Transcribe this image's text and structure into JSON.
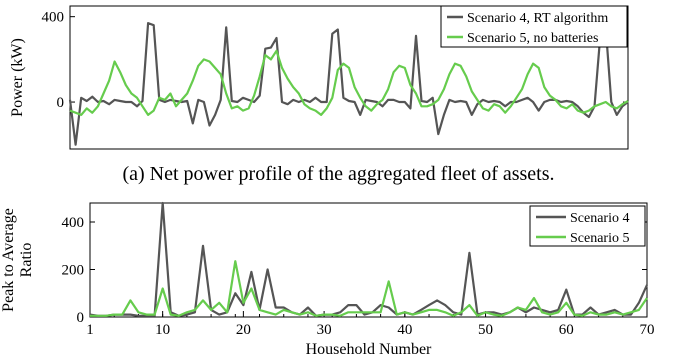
{
  "caption_a": "(a) Net power profile of the aggregated fleet of assets.",
  "chart_data": [
    {
      "type": "line",
      "title": "",
      "ylabel": "Power (kW)",
      "xlabel": "",
      "ylim": [
        -220,
        450
      ],
      "yticks": [
        0,
        400
      ],
      "xticks": [],
      "legend_position": "top-right",
      "series": [
        {
          "name": "Scenario 4, RT algorithm",
          "color": "#555555",
          "x": [
            0,
            1,
            2,
            3,
            4,
            5,
            6,
            7,
            8,
            9,
            10,
            11,
            12,
            13,
            14,
            15,
            16,
            17,
            18,
            19,
            20,
            21,
            22,
            23,
            24,
            25,
            26,
            27,
            28,
            29,
            30,
            31,
            32,
            33,
            34,
            35,
            36,
            37,
            38,
            39,
            40,
            41,
            42,
            43,
            44,
            45,
            46,
            47,
            48,
            49,
            50,
            51,
            52,
            53,
            54,
            55,
            56,
            57,
            58,
            59,
            60,
            61,
            62,
            63,
            64,
            65,
            66,
            67,
            68,
            69,
            70,
            71,
            72,
            73,
            74,
            75,
            76,
            77,
            78,
            79,
            80,
            81,
            82,
            83,
            84,
            85,
            86,
            87,
            88,
            89,
            90,
            91,
            92,
            93,
            94,
            95,
            96,
            97,
            98,
            99,
            100
          ],
          "values": [
            10,
            -200,
            20,
            5,
            25,
            0,
            5,
            -10,
            10,
            5,
            0,
            0,
            -20,
            5,
            370,
            360,
            10,
            0,
            10,
            5,
            0,
            5,
            -100,
            10,
            0,
            -110,
            -60,
            10,
            350,
            5,
            0,
            20,
            10,
            0,
            30,
            250,
            255,
            300,
            0,
            -10,
            10,
            0,
            10,
            0,
            20,
            0,
            0,
            320,
            340,
            20,
            5,
            0,
            -60,
            10,
            5,
            0,
            -20,
            10,
            10,
            0,
            0,
            -30,
            310,
            5,
            0,
            20,
            -150,
            -60,
            10,
            0,
            5,
            0,
            -60,
            -10,
            10,
            0,
            5,
            0,
            -20,
            0,
            0,
            10,
            20,
            0,
            -40,
            0,
            10,
            10,
            0,
            5,
            0,
            -20,
            -50,
            -70,
            -20,
            300,
            350,
            0,
            -60,
            -20,
            0
          ]
        },
        {
          "name": "Scenario 5, no batteries",
          "color": "#66cc4d",
          "x": [
            0,
            1,
            2,
            3,
            4,
            5,
            6,
            7,
            8,
            9,
            10,
            11,
            12,
            13,
            14,
            15,
            16,
            17,
            18,
            19,
            20,
            21,
            22,
            23,
            24,
            25,
            26,
            27,
            28,
            29,
            30,
            31,
            32,
            33,
            34,
            35,
            36,
            37,
            38,
            39,
            40,
            41,
            42,
            43,
            44,
            45,
            46,
            47,
            48,
            49,
            50,
            51,
            52,
            53,
            54,
            55,
            56,
            57,
            58,
            59,
            60,
            61,
            62,
            63,
            64,
            65,
            66,
            67,
            68,
            69,
            70,
            71,
            72,
            73,
            74,
            75,
            76,
            77,
            78,
            79,
            80,
            81,
            82,
            83,
            84,
            85,
            86,
            87,
            88,
            89,
            90,
            91,
            92,
            93,
            94,
            95,
            96,
            97,
            98,
            99,
            100
          ],
          "values": [
            -40,
            -50,
            -60,
            -30,
            -50,
            -20,
            40,
            100,
            190,
            140,
            80,
            40,
            20,
            -20,
            -60,
            -40,
            20,
            10,
            40,
            -20,
            10,
            40,
            100,
            170,
            200,
            190,
            160,
            130,
            40,
            -30,
            -20,
            -40,
            -30,
            30,
            120,
            220,
            200,
            240,
            160,
            110,
            70,
            40,
            -10,
            -30,
            -40,
            -60,
            -30,
            20,
            150,
            180,
            160,
            70,
            20,
            -20,
            -40,
            -10,
            10,
            60,
            140,
            170,
            160,
            80,
            40,
            -20,
            -20,
            -10,
            10,
            60,
            130,
            180,
            170,
            120,
            50,
            10,
            -30,
            -40,
            -10,
            -20,
            -50,
            -20,
            20,
            60,
            130,
            180,
            160,
            70,
            30,
            10,
            -20,
            -30,
            -10,
            -40,
            -50,
            -40,
            -20,
            -10,
            0,
            -20,
            -30,
            -10,
            5
          ]
        }
      ]
    },
    {
      "type": "line",
      "title": "",
      "xlabel": "Household Number",
      "ylabel": "Peak to Average Ratio",
      "xlim": [
        1,
        70
      ],
      "ylim": [
        0,
        480
      ],
      "xticks": [
        1,
        10,
        20,
        30,
        40,
        50,
        60,
        70
      ],
      "yticks": [
        0,
        200,
        400
      ],
      "legend_position": "top-right",
      "series": [
        {
          "name": "Scenario 4",
          "color": "#555555",
          "x": [
            1,
            2,
            3,
            4,
            5,
            6,
            7,
            8,
            9,
            10,
            11,
            12,
            13,
            14,
            15,
            16,
            17,
            18,
            19,
            20,
            21,
            22,
            23,
            24,
            25,
            26,
            27,
            28,
            29,
            30,
            31,
            32,
            33,
            34,
            35,
            36,
            37,
            38,
            39,
            40,
            41,
            42,
            43,
            44,
            45,
            46,
            47,
            48,
            49,
            50,
            51,
            52,
            53,
            54,
            55,
            56,
            57,
            58,
            59,
            60,
            61,
            62,
            63,
            64,
            65,
            66,
            67,
            68,
            69,
            70
          ],
          "values": [
            10,
            5,
            5,
            10,
            10,
            10,
            5,
            5,
            5,
            480,
            20,
            5,
            10,
            20,
            300,
            30,
            10,
            20,
            100,
            50,
            190,
            30,
            200,
            40,
            40,
            20,
            10,
            40,
            5,
            10,
            10,
            20,
            50,
            50,
            10,
            20,
            50,
            40,
            10,
            20,
            10,
            30,
            50,
            70,
            50,
            20,
            10,
            270,
            10,
            20,
            20,
            10,
            20,
            40,
            20,
            40,
            30,
            20,
            30,
            115,
            10,
            10,
            40,
            10,
            20,
            30,
            10,
            10,
            60,
            135
          ]
        },
        {
          "name": "Scenario 5",
          "color": "#66cc4d",
          "x": [
            1,
            2,
            3,
            4,
            5,
            6,
            7,
            8,
            9,
            10,
            11,
            12,
            13,
            14,
            15,
            16,
            17,
            18,
            19,
            20,
            21,
            22,
            23,
            24,
            25,
            26,
            27,
            28,
            29,
            30,
            31,
            32,
            33,
            34,
            35,
            36,
            37,
            38,
            39,
            40,
            41,
            42,
            43,
            44,
            45,
            46,
            47,
            48,
            49,
            50,
            51,
            52,
            53,
            54,
            55,
            56,
            57,
            58,
            59,
            60,
            61,
            62,
            63,
            64,
            65,
            66,
            67,
            68,
            69,
            70
          ],
          "values": [
            5,
            5,
            5,
            10,
            10,
            70,
            20,
            10,
            10,
            120,
            10,
            5,
            20,
            30,
            70,
            30,
            60,
            20,
            235,
            60,
            120,
            30,
            20,
            10,
            30,
            20,
            10,
            20,
            5,
            10,
            10,
            5,
            20,
            20,
            20,
            20,
            20,
            150,
            10,
            20,
            10,
            20,
            30,
            30,
            20,
            5,
            20,
            50,
            5,
            20,
            10,
            5,
            20,
            40,
            30,
            80,
            20,
            10,
            20,
            60,
            10,
            5,
            20,
            10,
            10,
            20,
            10,
            20,
            30,
            80
          ]
        }
      ]
    }
  ]
}
